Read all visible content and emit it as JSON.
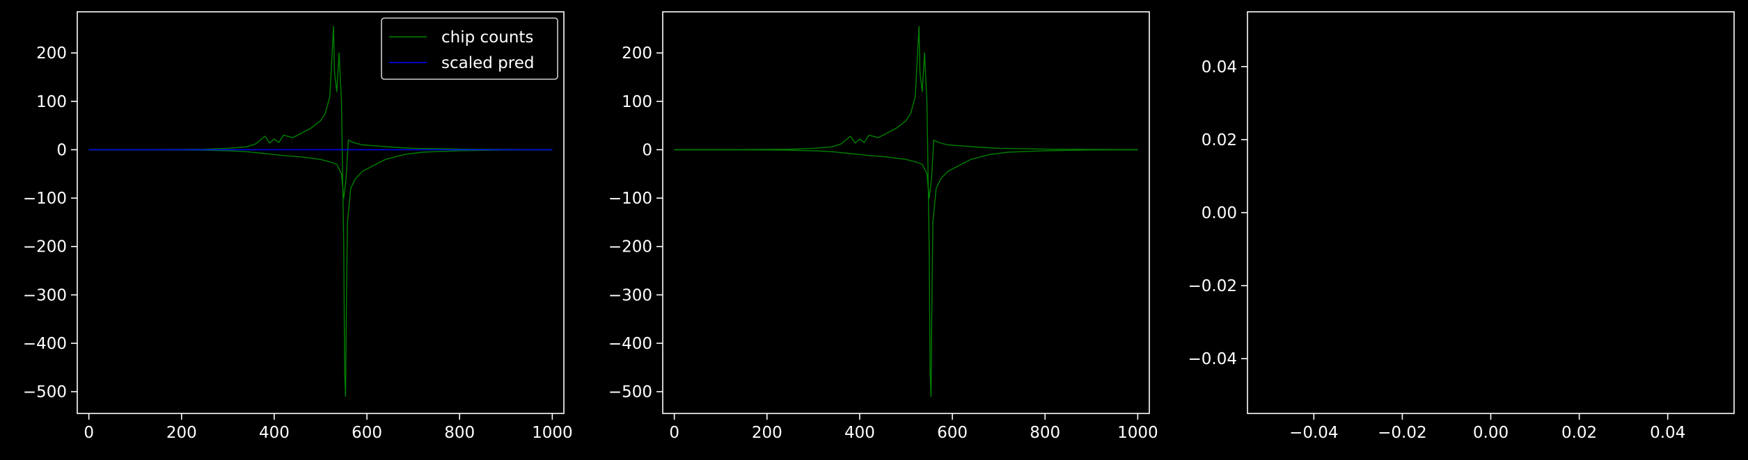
{
  "colors": {
    "background": "#000000",
    "axes": "#ffffff",
    "chip_counts": "#008000",
    "scaled_pred": "#0000ff"
  },
  "chart_data": [
    {
      "type": "line",
      "xlim": [
        -25,
        1025
      ],
      "ylim": [
        -545,
        285
      ],
      "x_ticks": [
        0,
        200,
        400,
        600,
        800,
        1000
      ],
      "x_tick_labels": [
        "0",
        "200",
        "400",
        "600",
        "800",
        "1000"
      ],
      "y_ticks": [
        200,
        100,
        0,
        -100,
        -200,
        -300,
        -400,
        -500
      ],
      "y_tick_labels": [
        "200",
        "100",
        "0",
        "−100",
        "−200",
        "−300",
        "−400",
        "−500"
      ],
      "legend": {
        "placement": "top-right",
        "entries": [
          {
            "label": "chip counts",
            "color": "#008000"
          },
          {
            "label": "scaled pred",
            "color": "#0000ff"
          }
        ]
      },
      "series": [
        {
          "name": "chip counts",
          "color": "#008000",
          "points": [
            [
              0,
              0
            ],
            [
              100,
              0
            ],
            [
              200,
              0.5
            ],
            [
              250,
              1
            ],
            [
              300,
              3
            ],
            [
              340,
              6
            ],
            [
              360,
              12
            ],
            [
              370,
              20
            ],
            [
              380,
              28
            ],
            [
              390,
              14
            ],
            [
              400,
              22
            ],
            [
              410,
              15
            ],
            [
              420,
              30
            ],
            [
              440,
              25
            ],
            [
              460,
              35
            ],
            [
              480,
              45
            ],
            [
              500,
              60
            ],
            [
              510,
              75
            ],
            [
              520,
              110
            ],
            [
              525,
              200
            ],
            [
              528,
              255
            ],
            [
              530,
              160
            ],
            [
              535,
              120
            ],
            [
              540,
              200
            ],
            [
              545,
              100
            ],
            [
              548,
              -80
            ],
            [
              550,
              -200
            ],
            [
              552,
              -460
            ],
            [
              554,
              -510
            ],
            [
              556,
              -300
            ],
            [
              558,
              -150
            ],
            [
              565,
              -80
            ],
            [
              575,
              -60
            ],
            [
              590,
              -45
            ],
            [
              610,
              -35
            ],
            [
              640,
              -20
            ],
            [
              680,
              -10
            ],
            [
              720,
              -5
            ],
            [
              800,
              -2
            ],
            [
              900,
              -0.5
            ],
            [
              1000,
              0
            ]
          ]
        },
        {
          "name": "chip counts",
          "color": "#008000",
          "points": [
            [
              0,
              0
            ],
            [
              100,
              0
            ],
            [
              200,
              -0.5
            ],
            [
              250,
              -1
            ],
            [
              300,
              -2
            ],
            [
              340,
              -4
            ],
            [
              380,
              -8
            ],
            [
              420,
              -12
            ],
            [
              460,
              -15
            ],
            [
              500,
              -20
            ],
            [
              520,
              -25
            ],
            [
              535,
              -30
            ],
            [
              545,
              -50
            ],
            [
              550,
              -100
            ],
            [
              555,
              -60
            ],
            [
              560,
              20
            ],
            [
              570,
              15
            ],
            [
              590,
              10
            ],
            [
              620,
              8
            ],
            [
              660,
              5
            ],
            [
              700,
              3
            ],
            [
              760,
              2
            ],
            [
              820,
              1
            ],
            [
              900,
              0.5
            ],
            [
              1000,
              0
            ]
          ]
        },
        {
          "name": "scaled pred",
          "color": "#0000ff",
          "points": [
            [
              0,
              0
            ],
            [
              1000,
              0
            ]
          ]
        }
      ]
    },
    {
      "type": "line",
      "xlim": [
        -25,
        1025
      ],
      "ylim": [
        -545,
        285
      ],
      "x_ticks": [
        0,
        200,
        400,
        600,
        800,
        1000
      ],
      "x_tick_labels": [
        "0",
        "200",
        "400",
        "600",
        "800",
        "1000"
      ],
      "y_ticks": [
        200,
        100,
        0,
        -100,
        -200,
        -300,
        -400,
        -500
      ],
      "y_tick_labels": [
        "200",
        "100",
        "0",
        "−100",
        "−200",
        "−300",
        "−400",
        "−500"
      ],
      "series": [
        {
          "color": "#008000",
          "points": [
            [
              0,
              0
            ],
            [
              100,
              0
            ],
            [
              200,
              0.5
            ],
            [
              250,
              1
            ],
            [
              300,
              3
            ],
            [
              340,
              6
            ],
            [
              360,
              12
            ],
            [
              370,
              20
            ],
            [
              380,
              28
            ],
            [
              390,
              14
            ],
            [
              400,
              22
            ],
            [
              410,
              15
            ],
            [
              420,
              30
            ],
            [
              440,
              25
            ],
            [
              460,
              35
            ],
            [
              480,
              45
            ],
            [
              500,
              60
            ],
            [
              510,
              75
            ],
            [
              520,
              110
            ],
            [
              525,
              200
            ],
            [
              528,
              255
            ],
            [
              530,
              160
            ],
            [
              535,
              120
            ],
            [
              540,
              200
            ],
            [
              545,
              100
            ],
            [
              548,
              -80
            ],
            [
              550,
              -200
            ],
            [
              552,
              -460
            ],
            [
              554,
              -510
            ],
            [
              556,
              -300
            ],
            [
              558,
              -150
            ],
            [
              565,
              -80
            ],
            [
              575,
              -60
            ],
            [
              590,
              -45
            ],
            [
              610,
              -35
            ],
            [
              640,
              -20
            ],
            [
              680,
              -10
            ],
            [
              720,
              -5
            ],
            [
              800,
              -2
            ],
            [
              900,
              -0.5
            ],
            [
              1000,
              0
            ]
          ]
        },
        {
          "color": "#008000",
          "points": [
            [
              0,
              0
            ],
            [
              100,
              0
            ],
            [
              200,
              -0.5
            ],
            [
              250,
              -1
            ],
            [
              300,
              -2
            ],
            [
              340,
              -4
            ],
            [
              380,
              -8
            ],
            [
              420,
              -12
            ],
            [
              460,
              -15
            ],
            [
              500,
              -20
            ],
            [
              520,
              -25
            ],
            [
              535,
              -30
            ],
            [
              545,
              -50
            ],
            [
              550,
              -100
            ],
            [
              555,
              -60
            ],
            [
              560,
              20
            ],
            [
              570,
              15
            ],
            [
              590,
              10
            ],
            [
              620,
              8
            ],
            [
              660,
              5
            ],
            [
              700,
              3
            ],
            [
              760,
              2
            ],
            [
              820,
              1
            ],
            [
              900,
              0.5
            ],
            [
              1000,
              0
            ]
          ]
        }
      ]
    },
    {
      "type": "line",
      "xlim": [
        -0.055,
        0.055
      ],
      "ylim": [
        -0.055,
        0.055
      ],
      "x_ticks": [
        -0.04,
        -0.02,
        0.0,
        0.02,
        0.04
      ],
      "x_tick_labels": [
        "−0.04",
        "−0.02",
        "0.00",
        "0.02",
        "0.04"
      ],
      "y_ticks": [
        0.04,
        0.02,
        0.0,
        -0.02,
        -0.04
      ],
      "y_tick_labels": [
        "0.04",
        "0.02",
        "0.00",
        "−0.02",
        "−0.04"
      ],
      "series": []
    }
  ]
}
